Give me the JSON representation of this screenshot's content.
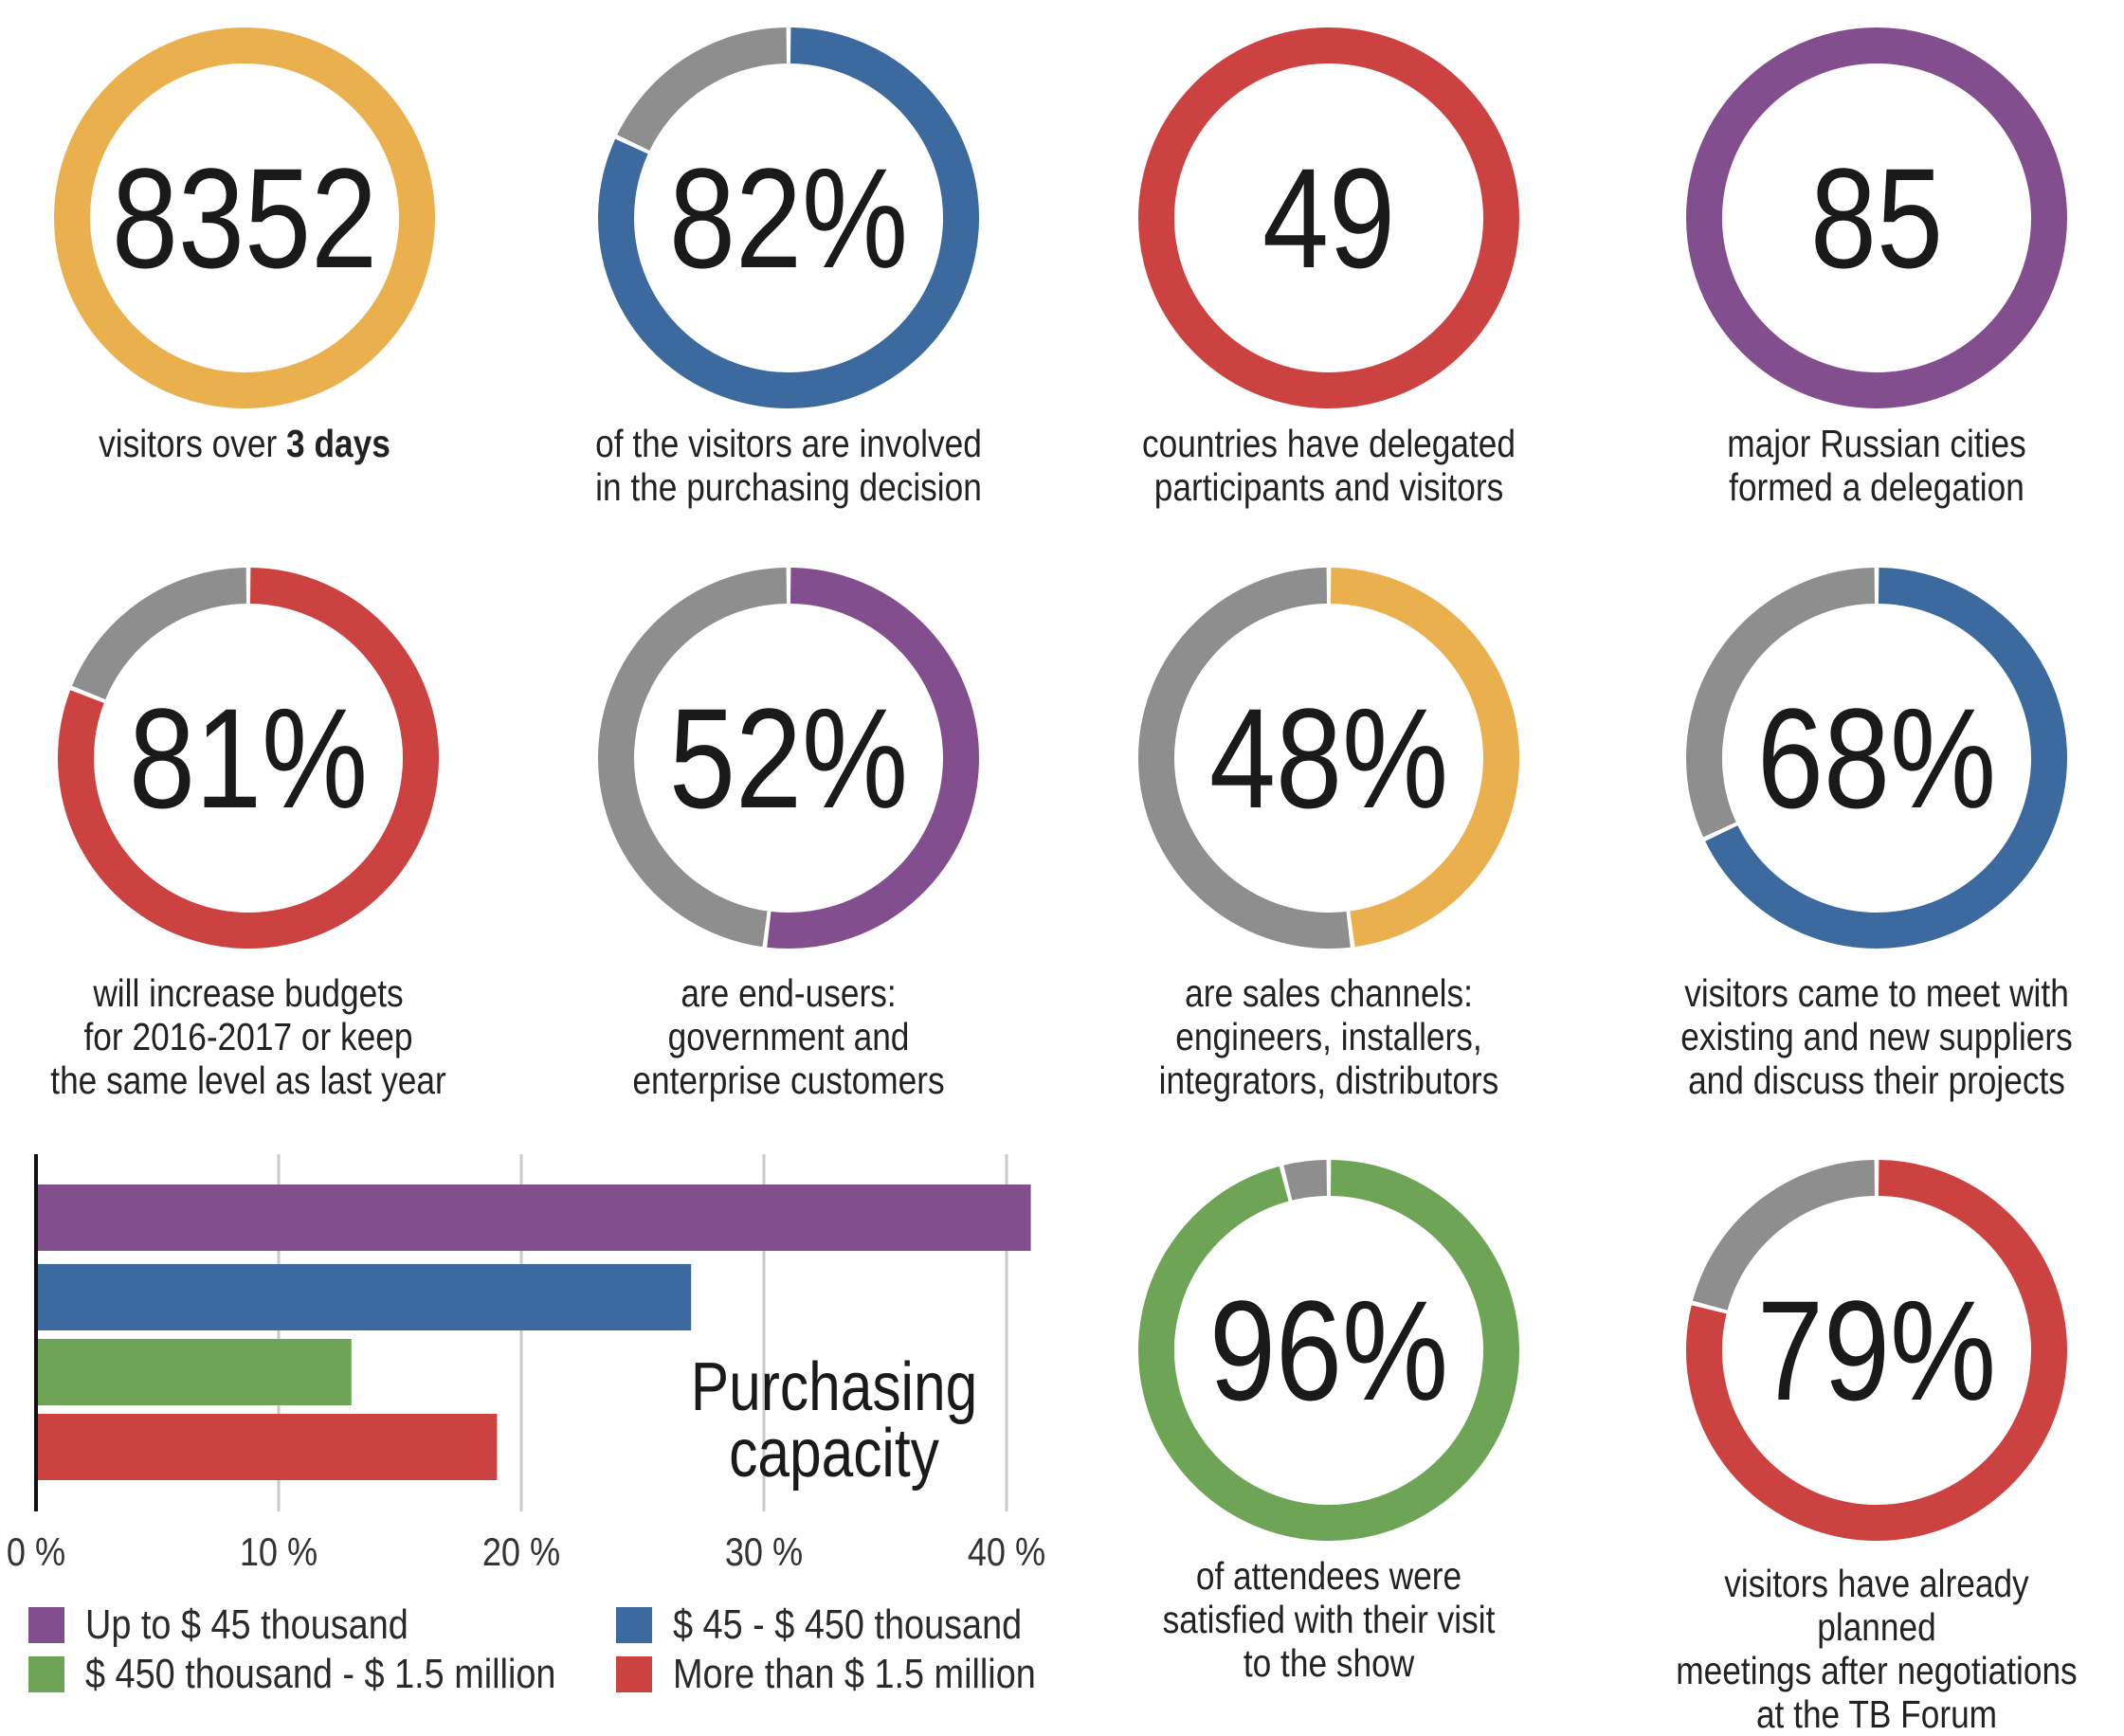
{
  "colors": {
    "yellow": "#e9b04d",
    "blue": "#3c6a9f",
    "red": "#cc4241",
    "purple": "#834e8e",
    "green": "#6ea455",
    "gray": "#8e8e8e"
  },
  "stats": [
    {
      "value": "8352",
      "percent": 100,
      "color": "yellow",
      "caption_lines": [
        "visitors over "
      ],
      "caption_bold": "3 days"
    },
    {
      "value": "82%",
      "percent": 82,
      "color": "blue",
      "caption_lines": [
        "of the visitors are involved",
        "in the purchasing decision"
      ]
    },
    {
      "value": "49",
      "percent": 100,
      "color": "red",
      "caption_lines": [
        "countries have delegated",
        "participants and visitors"
      ]
    },
    {
      "value": "85",
      "percent": 100,
      "color": "purple",
      "caption_lines": [
        "major Russian cities",
        "formed a delegation"
      ]
    },
    {
      "value": "81%",
      "percent": 81,
      "color": "red",
      "caption_lines": [
        "will increase budgets",
        "for 2016-2017 or keep",
        "the same level as last year"
      ]
    },
    {
      "value": "52%",
      "percent": 52,
      "color": "purple",
      "caption_lines": [
        "are end-users:",
        "government and",
        "enterprise customers"
      ]
    },
    {
      "value": "48%",
      "percent": 48,
      "color": "yellow",
      "caption_lines": [
        "are sales channels:",
        "engineers, installers,",
        "integrators, distributors"
      ]
    },
    {
      "value": "68%",
      "percent": 68,
      "color": "blue",
      "caption_lines": [
        "visitors came to meet with",
        "existing and new suppliers",
        "and discuss their projects"
      ]
    },
    {
      "value": "96%",
      "percent": 96,
      "color": "green",
      "caption_lines": [
        "of attendees were",
        "satisfied with their visit",
        "to the show"
      ]
    },
    {
      "value": "79%",
      "percent": 79,
      "color": "red",
      "caption_lines": [
        "visitors have already planned",
        "meetings after negotiations",
        "at the TB Forum"
      ]
    }
  ],
  "chart_data": {
    "type": "bar",
    "orientation": "horizontal",
    "title_lines": [
      "Purchasing",
      "capacity"
    ],
    "categories": [
      "Up to $ 45 thousand",
      "$ 45 - $ 450 thousand",
      "$ 450 thousand - $ 1.5 million",
      "More than $ 1.5 million"
    ],
    "values": [
      41,
      27,
      13,
      19
    ],
    "series_colors": [
      "purple",
      "blue",
      "green",
      "red"
    ],
    "xlim": [
      0,
      45
    ],
    "xticks": [
      0,
      10,
      20,
      30,
      40
    ],
    "xtick_labels": [
      "0 %",
      "10 %",
      "20 %",
      "30 %",
      "40 %"
    ],
    "grid": true,
    "legend": "bottom"
  }
}
